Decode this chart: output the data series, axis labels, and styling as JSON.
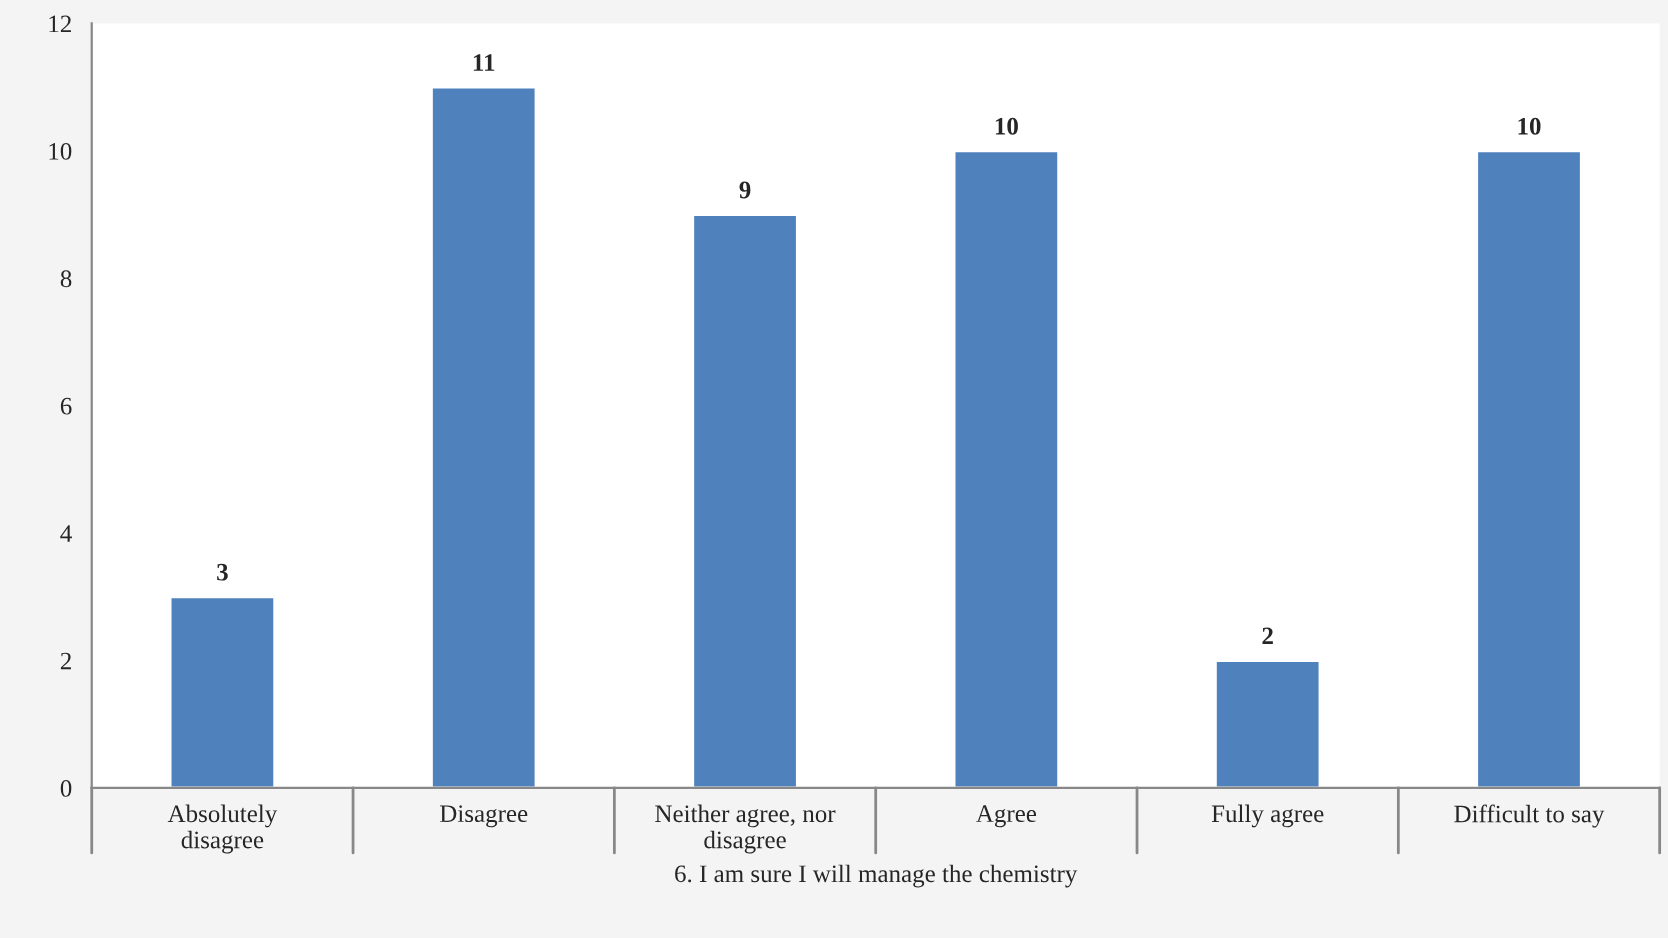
{
  "chart_data": {
    "type": "bar",
    "xlabel": "6. I am sure I will manage the chemistry",
    "categories": [
      "Absolutely\ndisagree",
      "Disagree",
      "Neither agree, nor\ndisagree",
      "Agree",
      "Fully agree",
      "Difficult to say"
    ],
    "values": [
      3,
      11,
      9,
      10,
      2,
      10
    ],
    "color": "#4f81bd",
    "ylim": [
      0,
      12
    ],
    "yticks": [
      0,
      2,
      4,
      6,
      8,
      10,
      12
    ],
    "grid": false,
    "data_labels": true
  }
}
